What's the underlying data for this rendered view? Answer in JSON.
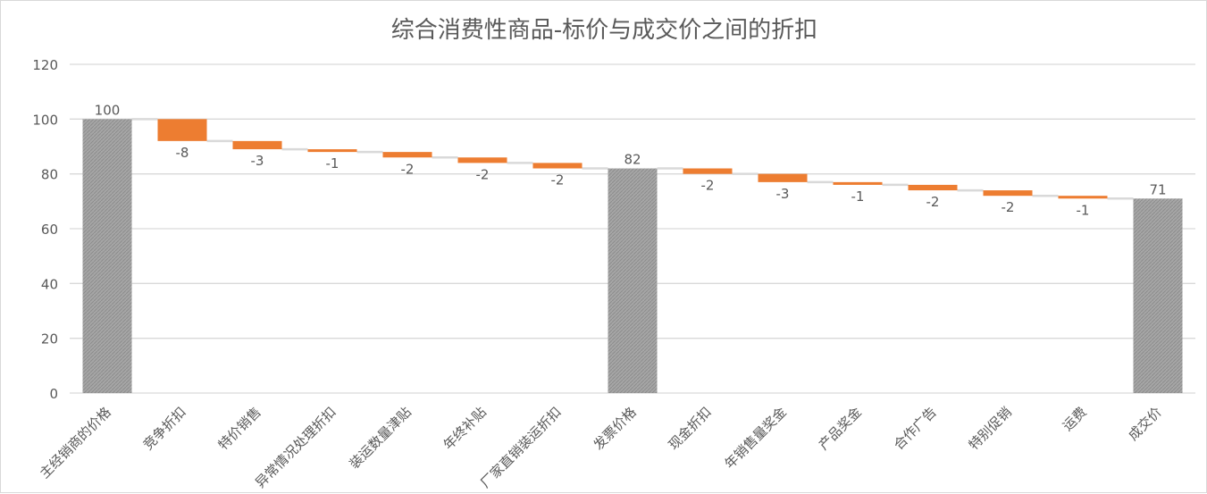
{
  "chart_data": {
    "type": "bar",
    "subtype": "waterfall",
    "title": "综合消费性商品-标价与成交价之间的折扣",
    "xlabel": "",
    "ylabel": "",
    "ylim": [
      0,
      120
    ],
    "yticks": [
      0,
      20,
      40,
      60,
      80,
      100,
      120
    ],
    "grid": true,
    "legend": "none",
    "colors": {
      "total": "#a6a6a6",
      "decrease": "#ed7d31",
      "connector": "#d9d9d9",
      "grid": "#d9d9d9",
      "text": "#595959"
    },
    "categories": [
      "主经销商的价格",
      "竞争折扣",
      "特价销售",
      "异常情况处理折扣",
      "装运数量津贴",
      "年终补贴",
      "厂家直销装运折扣",
      "发票价格",
      "现金折扣",
      "年销售量奖金",
      "产品奖金",
      "合作广告",
      "特别促销",
      "运费",
      "成交价"
    ],
    "values": [
      100,
      -8,
      -3,
      -1,
      -2,
      -2,
      -2,
      82,
      -2,
      -3,
      -1,
      -2,
      -2,
      -1,
      71
    ],
    "is_total": [
      true,
      false,
      false,
      false,
      false,
      false,
      false,
      true,
      false,
      false,
      false,
      false,
      false,
      false,
      true
    ],
    "data_labels": [
      "100",
      "-8",
      "-3",
      "-1",
      "-2",
      "-2",
      "-2",
      "82",
      "-2",
      "-3",
      "-1",
      "-2",
      "-2",
      "-1",
      "71"
    ]
  }
}
